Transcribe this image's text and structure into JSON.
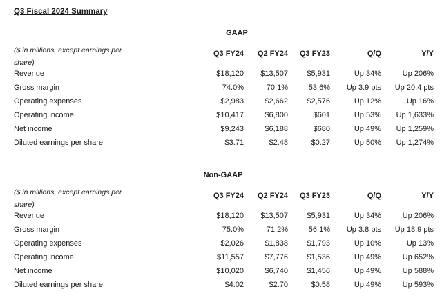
{
  "title": "Q3 Fiscal 2024 Summary",
  "note": "($ in millions, except earnings per share)",
  "columns": [
    "Q3 FY24",
    "Q2 FY24",
    "Q3 FY23",
    "Q/Q",
    "Y/Y"
  ],
  "sections": [
    {
      "name": "GAAP",
      "rows": [
        {
          "label": "Revenue",
          "values": [
            "$18,120",
            "$13,507",
            "$5,931",
            "Up 34%",
            "Up 206%"
          ]
        },
        {
          "label": "Gross margin",
          "values": [
            "74.0%",
            "70.1%",
            "53.6%",
            "Up 3.9 pts",
            "Up 20.4 pts"
          ]
        },
        {
          "label": "Operating expenses",
          "values": [
            "$2,983",
            "$2,662",
            "$2,576",
            "Up 12%",
            "Up 16%"
          ]
        },
        {
          "label": "Operating income",
          "values": [
            "$10,417",
            "$6,800",
            "$601",
            "Up 53%",
            "Up 1,633%"
          ]
        },
        {
          "label": "Net income",
          "values": [
            "$9,243",
            "$6,188",
            "$680",
            "Up 49%",
            "Up 1,259%"
          ]
        },
        {
          "label": "Diluted earnings per share",
          "values": [
            "$3.71",
            "$2.48",
            "$0.27",
            "Up 50%",
            "Up 1,274%"
          ]
        }
      ]
    },
    {
      "name": "Non-GAAP",
      "rows": [
        {
          "label": "Revenue",
          "values": [
            "$18,120",
            "$13,507",
            "$5,931",
            "Up 34%",
            "Up 206%"
          ]
        },
        {
          "label": "Gross margin",
          "values": [
            "75.0%",
            "71.2%",
            "56.1%",
            "Up 3.8 pts",
            "Up 18.9 pts"
          ]
        },
        {
          "label": "Operating expenses",
          "values": [
            "$2,026",
            "$1,838",
            "$1,793",
            "Up 10%",
            "Up 13%"
          ]
        },
        {
          "label": "Operating income",
          "values": [
            "$11,557",
            "$7,776",
            "$1,536",
            "Up 49%",
            "Up 652%"
          ]
        },
        {
          "label": "Net income",
          "values": [
            "$10,020",
            "$6,740",
            "$1,456",
            "Up 49%",
            "Up 588%"
          ]
        },
        {
          "label": "Diluted earnings per share",
          "values": [
            "$4.02",
            "$2.70",
            "$0.58",
            "Up 49%",
            "Up 593%"
          ]
        }
      ]
    }
  ]
}
